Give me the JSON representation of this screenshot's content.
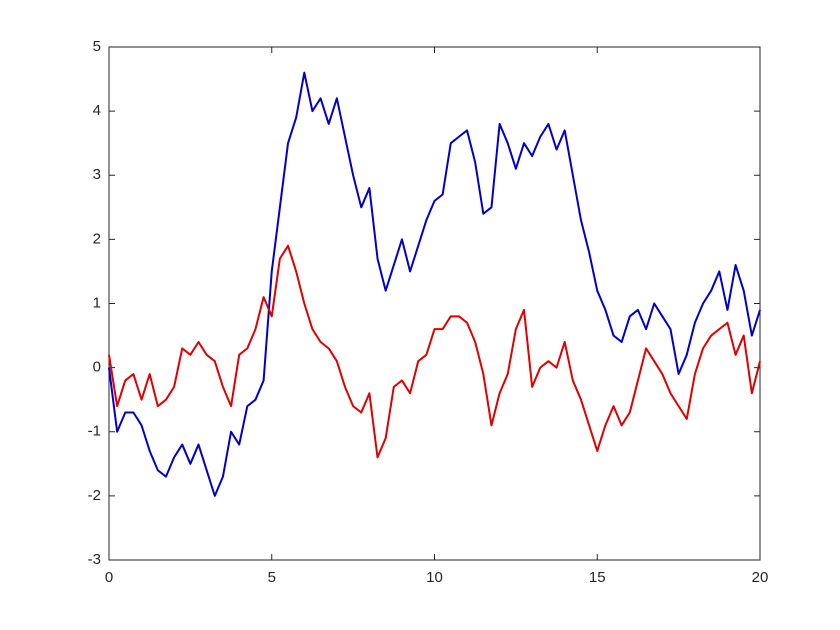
{
  "chart_data": {
    "type": "line",
    "x": [
      0,
      0.25,
      0.5,
      0.75,
      1,
      1.25,
      1.5,
      1.75,
      2,
      2.25,
      2.5,
      2.75,
      3,
      3.25,
      3.5,
      3.75,
      4,
      4.25,
      4.5,
      4.75,
      5,
      5.25,
      5.5,
      5.75,
      6,
      6.25,
      6.5,
      6.75,
      7,
      7.25,
      7.5,
      7.75,
      8,
      8.25,
      8.5,
      8.75,
      9,
      9.25,
      9.5,
      9.75,
      10,
      10.25,
      10.5,
      10.75,
      11,
      11.25,
      11.5,
      11.75,
      12,
      12.25,
      12.5,
      12.75,
      13,
      13.25,
      13.5,
      13.75,
      14,
      14.25,
      14.5,
      14.75,
      15,
      15.25,
      15.5,
      15.75,
      16,
      16.25,
      16.5,
      16.75,
      17,
      17.25,
      17.5,
      17.75,
      18,
      18.25,
      18.5,
      18.75,
      19,
      19.25,
      19.5,
      19.75,
      20
    ],
    "series": [
      {
        "color": "#0000cc",
        "values": [
          0,
          -1.0,
          -0.7,
          -0.7,
          -0.9,
          -1.3,
          -1.6,
          -1.7,
          -1.4,
          -1.2,
          -1.5,
          -1.2,
          -1.6,
          -2.0,
          -1.7,
          -1.0,
          -1.2,
          -0.6,
          -0.5,
          -0.2,
          1.5,
          2.5,
          3.5,
          3.9,
          4.6,
          4.0,
          4.2,
          3.8,
          4.2,
          3.6,
          3.0,
          2.5,
          2.8,
          1.7,
          1.2,
          1.6,
          2.0,
          1.5,
          1.9,
          2.3,
          2.6,
          2.7,
          3.5,
          3.6,
          3.7,
          3.2,
          2.4,
          2.5,
          3.8,
          3.5,
          3.1,
          3.5,
          3.3,
          3.6,
          3.8,
          3.4,
          3.7,
          3.0,
          2.3,
          1.8,
          1.2,
          0.9,
          0.5,
          0.4,
          0.8,
          0.9,
          0.6,
          1.0,
          0.8,
          0.6,
          -0.1,
          0.2,
          0.7,
          1.0,
          1.2,
          1.5,
          0.9,
          1.6,
          1.2,
          0.5,
          0.9
        ]
      },
      {
        "color": "#e00000",
        "values": [
          0.2,
          -0.6,
          -0.2,
          -0.1,
          -0.5,
          -0.1,
          -0.6,
          -0.5,
          -0.3,
          0.3,
          0.2,
          0.4,
          0.2,
          0.1,
          -0.3,
          -0.6,
          0.2,
          0.3,
          0.6,
          1.1,
          0.8,
          1.7,
          1.9,
          1.5,
          1.0,
          0.6,
          0.4,
          0.3,
          0.1,
          -0.3,
          -0.6,
          -0.7,
          -0.4,
          -1.4,
          -1.1,
          -0.3,
          -0.2,
          -0.4,
          0.1,
          0.2,
          0.6,
          0.6,
          0.8,
          0.8,
          0.7,
          0.4,
          -0.1,
          -0.9,
          -0.4,
          -0.1,
          0.6,
          0.9,
          -0.3,
          0.0,
          0.1,
          0.0,
          0.4,
          -0.2,
          -0.5,
          -0.9,
          -1.3,
          -0.9,
          -0.6,
          -0.9,
          -0.7,
          -0.2,
          0.3,
          0.1,
          -0.1,
          -0.4,
          -0.6,
          -0.8,
          -0.1,
          0.3,
          0.5,
          0.6,
          0.7,
          0.2,
          0.5,
          -0.4,
          0.1
        ]
      }
    ],
    "xlim": [
      0,
      20
    ],
    "xticks": [
      0,
      5,
      10,
      15,
      20
    ],
    "ylim": [
      -3,
      5
    ],
    "yticks": [
      -3,
      -2,
      -1,
      0,
      1,
      2,
      3,
      4,
      5
    ],
    "grid": false
  }
}
